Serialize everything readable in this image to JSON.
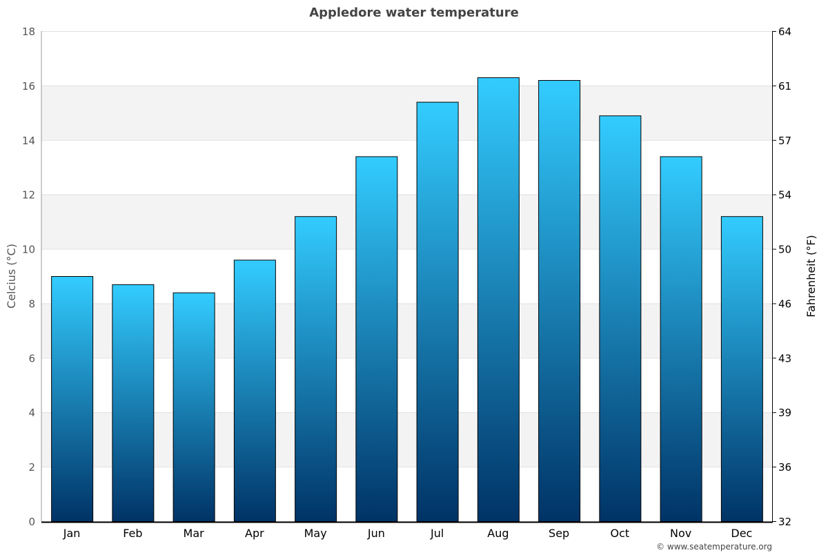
{
  "chart_data": {
    "type": "bar",
    "title": "Appledore water temperature",
    "categories": [
      "Jan",
      "Feb",
      "Mar",
      "Apr",
      "May",
      "Jun",
      "Jul",
      "Aug",
      "Sep",
      "Oct",
      "Nov",
      "Dec"
    ],
    "values": [
      9.0,
      8.7,
      8.4,
      9.6,
      11.2,
      13.4,
      15.4,
      16.3,
      16.2,
      14.9,
      13.4,
      11.2
    ],
    "ylabel": "Celcius (°C)",
    "ylabel_right": "Fahrenheit (°F)",
    "ylim": [
      0,
      18
    ],
    "yticks": [
      "0",
      "2",
      "4",
      "6",
      "8",
      "10",
      "12",
      "14",
      "16",
      "18"
    ],
    "yticks_right": [
      "32",
      "36",
      "39",
      "43",
      "46",
      "50",
      "54",
      "57",
      "61",
      "64"
    ],
    "grid": true,
    "bar_gradient": [
      "#33ccff",
      "#003366"
    ],
    "band_color": "#f3f3f3"
  },
  "credit": "© www.seatemperature.org"
}
